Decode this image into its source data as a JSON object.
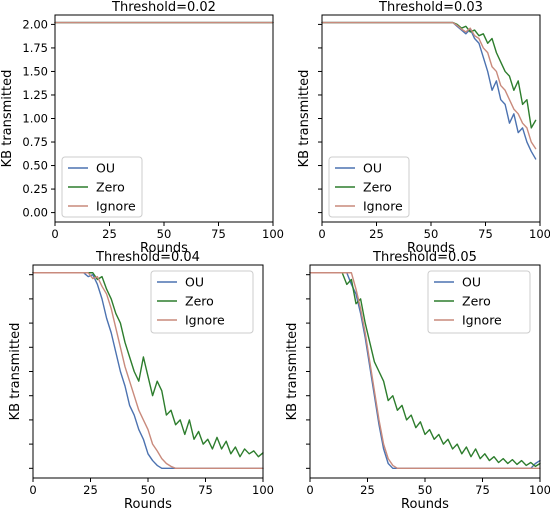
{
  "chart_data": [
    {
      "type": "line",
      "title": "Threshold=0.02",
      "xlabel": "Rounds",
      "ylabel": "KB transmitted",
      "xlim": [
        0,
        100
      ],
      "ylim": [
        -0.1,
        2.1
      ],
      "xticks": [
        "0",
        "25",
        "50",
        "75",
        "100"
      ],
      "yticks": [
        "0.00",
        "0.25",
        "0.50",
        "0.75",
        "1.00",
        "1.25",
        "1.50",
        "1.75",
        "2.00"
      ],
      "legend": "lower-left",
      "series": [
        {
          "name": "OU",
          "color": "#4c72b0",
          "x": [
            0,
            100
          ],
          "y": [
            2.02,
            2.02
          ]
        },
        {
          "name": "Zero",
          "color": "#2d7d2d",
          "x": [
            0,
            100
          ],
          "y": [
            2.02,
            2.02
          ]
        },
        {
          "name": "Ignore",
          "color": "#c98a7c",
          "x": [
            0,
            100
          ],
          "y": [
            2.02,
            2.02
          ]
        }
      ]
    },
    {
      "type": "line",
      "title": "Threshold=0.03",
      "xlabel": "Rounds",
      "ylabel": "KB transmitted",
      "xlim": [
        0,
        100
      ],
      "ylim": [
        -0.1,
        2.1
      ],
      "xticks": [
        "0",
        "25",
        "50",
        "75",
        "100"
      ],
      "legend": "upper-left",
      "series": [
        {
          "name": "OU",
          "color": "#4c72b0",
          "x": [
            0,
            60,
            62,
            64,
            66,
            68,
            70,
            72,
            74,
            76,
            78,
            80,
            82,
            84,
            86,
            88,
            90,
            92,
            94,
            96,
            98
          ],
          "y": [
            2.02,
            2.02,
            1.98,
            1.94,
            1.9,
            1.95,
            1.85,
            1.8,
            1.65,
            1.5,
            1.3,
            1.4,
            1.2,
            1.15,
            0.95,
            1.05,
            0.85,
            0.9,
            0.75,
            0.65,
            0.57
          ]
        },
        {
          "name": "Zero",
          "color": "#2d7d2d",
          "x": [
            0,
            60,
            62,
            64,
            66,
            68,
            70,
            72,
            74,
            76,
            78,
            80,
            82,
            84,
            86,
            88,
            90,
            92,
            94,
            96,
            98
          ],
          "y": [
            2.02,
            2.02,
            2.0,
            1.96,
            1.98,
            1.92,
            1.94,
            1.88,
            1.9,
            1.8,
            1.85,
            1.7,
            1.6,
            1.5,
            1.45,
            1.3,
            1.4,
            1.15,
            1.2,
            0.9,
            0.98
          ]
        },
        {
          "name": "Ignore",
          "color": "#c98a7c",
          "x": [
            0,
            60,
            62,
            64,
            66,
            68,
            70,
            72,
            74,
            76,
            78,
            80,
            82,
            84,
            86,
            88,
            90,
            92,
            94,
            96,
            98
          ],
          "y": [
            2.02,
            2.02,
            1.99,
            1.95,
            1.92,
            1.96,
            1.88,
            1.85,
            1.75,
            1.7,
            1.55,
            1.5,
            1.35,
            1.3,
            1.2,
            1.1,
            1.05,
            0.95,
            0.9,
            0.75,
            0.68
          ]
        }
      ]
    },
    {
      "type": "line",
      "title": "Threshold=0.04",
      "xlabel": "Rounds",
      "ylabel": "KB transmitted",
      "xlim": [
        0,
        100
      ],
      "ylim": [
        -0.1,
        2.1
      ],
      "xticks": [
        "0",
        "25",
        "50",
        "75",
        "100"
      ],
      "legend": "upper-right",
      "series": [
        {
          "name": "OU",
          "color": "#4c72b0",
          "x": [
            0,
            22,
            24,
            26,
            28,
            30,
            32,
            34,
            36,
            38,
            40,
            42,
            44,
            46,
            48,
            50,
            52,
            54,
            56,
            58,
            60,
            100
          ],
          "y": [
            2.02,
            2.02,
            1.98,
            2.0,
            1.9,
            1.75,
            1.55,
            1.4,
            1.2,
            1.0,
            0.85,
            0.65,
            0.55,
            0.4,
            0.3,
            0.15,
            0.08,
            0.03,
            0.0,
            0.0,
            0.0,
            0.0
          ]
        },
        {
          "name": "Zero",
          "color": "#2d7d2d",
          "x": [
            0,
            26,
            28,
            30,
            32,
            34,
            36,
            38,
            40,
            42,
            44,
            46,
            48,
            50,
            52,
            54,
            56,
            58,
            60,
            62,
            64,
            66,
            68,
            70,
            72,
            74,
            76,
            78,
            80,
            82,
            84,
            86,
            88,
            90,
            92,
            94,
            96,
            98,
            100
          ],
          "y": [
            2.02,
            2.02,
            1.95,
            1.98,
            1.85,
            1.75,
            1.6,
            1.5,
            1.3,
            1.15,
            1.0,
            0.9,
            1.15,
            0.95,
            0.75,
            0.9,
            0.8,
            0.55,
            0.6,
            0.45,
            0.5,
            0.35,
            0.5,
            0.3,
            0.38,
            0.25,
            0.3,
            0.2,
            0.32,
            0.2,
            0.28,
            0.15,
            0.22,
            0.12,
            0.2,
            0.15,
            0.18,
            0.12,
            0.16
          ]
        },
        {
          "name": "Ignore",
          "color": "#c98a7c",
          "x": [
            0,
            24,
            26,
            28,
            30,
            32,
            34,
            36,
            38,
            40,
            42,
            44,
            46,
            48,
            50,
            52,
            54,
            56,
            58,
            60,
            62,
            100
          ],
          "y": [
            2.02,
            2.02,
            1.96,
            1.98,
            1.88,
            1.8,
            1.65,
            1.45,
            1.25,
            1.05,
            0.9,
            0.75,
            0.6,
            0.5,
            0.4,
            0.25,
            0.18,
            0.1,
            0.05,
            0.02,
            0.0,
            0.0
          ]
        }
      ]
    },
    {
      "type": "line",
      "title": "Threshold=0.05",
      "xlabel": "Rounds",
      "ylabel": "KB transmitted",
      "xlim": [
        0,
        100
      ],
      "ylim": [
        -0.1,
        2.1
      ],
      "xticks": [
        "0",
        "25",
        "50",
        "75",
        "100"
      ],
      "legend": "upper-right",
      "series": [
        {
          "name": "OU",
          "color": "#4c72b0",
          "x": [
            0,
            16,
            18,
            20,
            22,
            24,
            26,
            28,
            30,
            32,
            34,
            36,
            38,
            96,
            98,
            100
          ],
          "y": [
            2.02,
            2.02,
            1.9,
            1.8,
            1.6,
            1.35,
            1.05,
            0.75,
            0.45,
            0.2,
            0.05,
            0.0,
            0.0,
            0.0,
            0.05,
            0.08
          ]
        },
        {
          "name": "Zero",
          "color": "#2d7d2d",
          "x": [
            0,
            14,
            16,
            18,
            20,
            22,
            24,
            26,
            28,
            30,
            32,
            34,
            36,
            38,
            40,
            42,
            44,
            46,
            48,
            50,
            52,
            54,
            56,
            58,
            60,
            62,
            64,
            66,
            68,
            70,
            72,
            74,
            76,
            78,
            80,
            82,
            84,
            86,
            88,
            90,
            92,
            94,
            96,
            98,
            100
          ],
          "y": [
            2.02,
            2.02,
            1.9,
            1.95,
            1.7,
            1.75,
            1.5,
            1.3,
            1.1,
            1.0,
            0.9,
            0.7,
            0.75,
            0.6,
            0.65,
            0.5,
            0.55,
            0.42,
            0.48,
            0.35,
            0.4,
            0.3,
            0.35,
            0.25,
            0.3,
            0.2,
            0.25,
            0.15,
            0.22,
            0.12,
            0.2,
            0.1,
            0.15,
            0.08,
            0.12,
            0.06,
            0.1,
            0.05,
            0.09,
            0.04,
            0.08,
            0.03,
            0.06,
            0.02,
            0.05
          ]
        },
        {
          "name": "Ignore",
          "color": "#c98a7c",
          "x": [
            0,
            18,
            20,
            22,
            24,
            26,
            28,
            30,
            32,
            34,
            36,
            38,
            40,
            100
          ],
          "y": [
            2.02,
            2.02,
            1.85,
            1.65,
            1.4,
            1.1,
            0.8,
            0.5,
            0.25,
            0.1,
            0.03,
            0.0,
            0.0,
            0.0
          ]
        }
      ]
    }
  ]
}
